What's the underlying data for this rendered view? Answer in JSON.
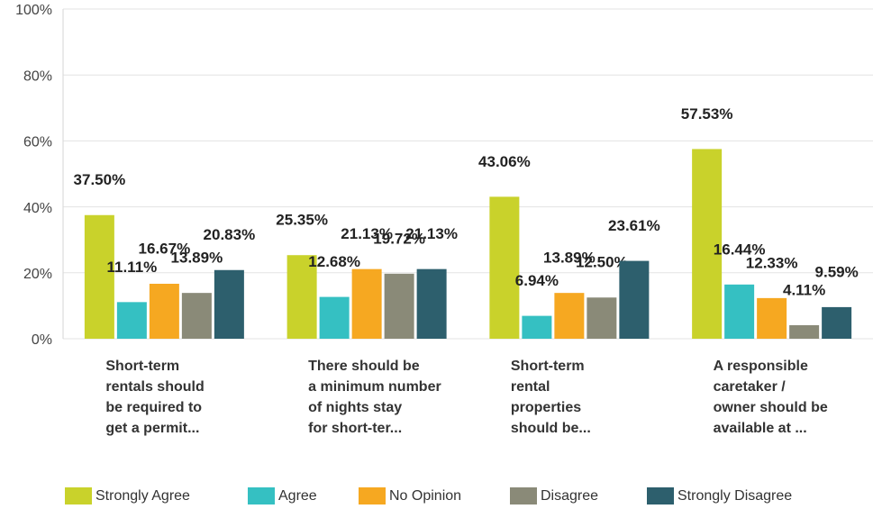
{
  "chart_data": {
    "type": "bar",
    "categories": [
      [
        "Short-term",
        "rentals should",
        "be required to",
        "get a permit..."
      ],
      [
        "There should be",
        "a minimum number",
        "of nights stay",
        "for short-ter..."
      ],
      [
        "Short-term",
        "rental",
        "properties",
        "should be..."
      ],
      [
        "A responsible",
        "caretaker /",
        "owner should be",
        "available at ..."
      ]
    ],
    "series": [
      {
        "name": "Strongly Agree",
        "color": "#c9d22b",
        "values": [
          37.5,
          25.35,
          43.06,
          57.53
        ],
        "value_labels": [
          "37.50%",
          "25.35%",
          "43.06%",
          "57.53%"
        ]
      },
      {
        "name": "Agree",
        "color": "#35c0c2",
        "values": [
          11.11,
          12.68,
          6.94,
          16.44
        ],
        "value_labels": [
          "11.11%",
          "12.68%",
          "6.94%",
          "16.44%"
        ]
      },
      {
        "name": "No Opinion",
        "color": "#f6a821",
        "values": [
          16.67,
          21.13,
          13.89,
          12.33
        ],
        "value_labels": [
          "16.67%",
          "21.13%",
          "13.89%",
          "12.33%"
        ]
      },
      {
        "name": "Disagree",
        "color": "#8a8a78",
        "values": [
          13.89,
          19.72,
          12.5,
          4.11
        ],
        "value_labels": [
          "13.89%",
          "19.72%",
          "12.50%",
          "4.11%"
        ]
      },
      {
        "name": "Strongly Disagree",
        "color": "#2d5f6d",
        "values": [
          20.83,
          21.13,
          23.61,
          9.59
        ],
        "value_labels": [
          "20.83%",
          "21.13%",
          "23.61%",
          "9.59%"
        ]
      }
    ],
    "ylim": [
      0,
      100
    ],
    "yticks": [
      {
        "value": 0,
        "label": "0%"
      },
      {
        "value": 20,
        "label": "20%"
      },
      {
        "value": 40,
        "label": "40%"
      },
      {
        "value": 60,
        "label": "60%"
      },
      {
        "value": 80,
        "label": "80%"
      },
      {
        "value": 100,
        "label": "100%"
      }
    ],
    "grid": true,
    "legend": "bottom"
  }
}
